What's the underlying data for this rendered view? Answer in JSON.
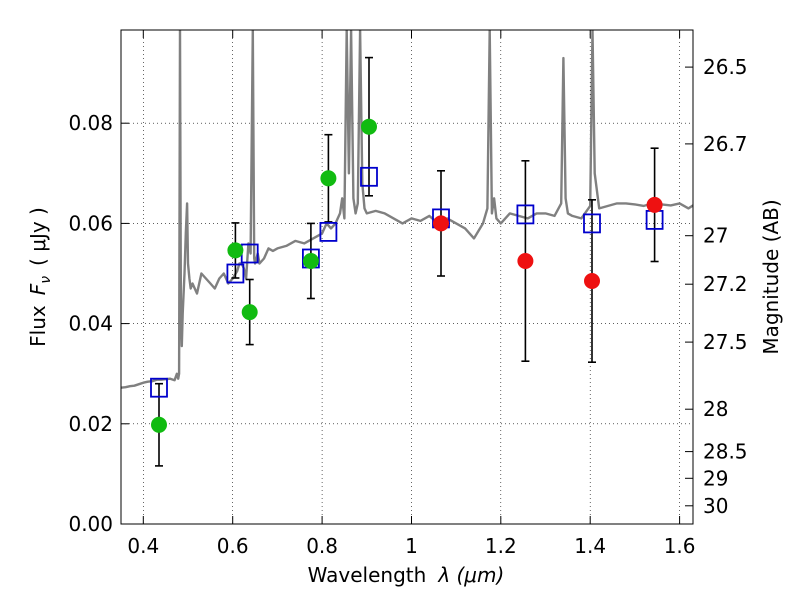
{
  "chart_data": {
    "type": "scatter",
    "xlabel": "Wavelength",
    "xlabel_symbol": "λ (μm)",
    "ylabel": "Flux",
    "ylabel_symbol": "F",
    "ylabel_subscript": "ν",
    "ylabel_unit": "( μJy )",
    "y2label": "Magnitude (AB)",
    "xlim": [
      0.35,
      1.63
    ],
    "ylim": [
      0.0,
      0.0986
    ],
    "grid": true,
    "x_ticks": [
      0.4,
      0.6,
      0.8,
      1.0,
      1.2,
      1.4,
      1.6
    ],
    "x_tick_labels": [
      "0.4",
      "0.6",
      "0.8",
      "1",
      "1.2",
      "1.4",
      "1.6"
    ],
    "y_ticks": [
      0.0,
      0.02,
      0.04,
      0.06,
      0.08
    ],
    "y_tick_labels": [
      "0.00",
      "0.02",
      "0.04",
      "0.06",
      "0.08"
    ],
    "magnitude_ticks": [
      {
        "label": "26.5",
        "mag": 26.5
      },
      {
        "label": "26.7",
        "mag": 26.7
      },
      {
        "label": "27",
        "mag": 27.0
      },
      {
        "label": "27.2",
        "mag": 27.2
      },
      {
        "label": "27.5",
        "mag": 27.5
      },
      {
        "label": "28",
        "mag": 28.0
      },
      {
        "label": "28.5",
        "mag": 28.5
      },
      {
        "label": "29",
        "mag": 29.0
      },
      {
        "label": "30",
        "mag": 30.0
      }
    ],
    "colors": {
      "model": "#808080",
      "optical": "#11bb11",
      "infrared": "#ee1111",
      "model_photometry": "#0000cc",
      "errorbar": "#000000"
    },
    "observed_optical": [
      {
        "x": 0.435,
        "y": 0.0198,
        "err_lo": 0.0082,
        "err_hi": 0.0082
      },
      {
        "x": 0.606,
        "y": 0.0546,
        "err_lo": 0.0055,
        "err_hi": 0.0055
      },
      {
        "x": 0.638,
        "y": 0.0423,
        "err_lo": 0.0065,
        "err_hi": 0.0065
      },
      {
        "x": 0.775,
        "y": 0.0525,
        "err_lo": 0.0075,
        "err_hi": 0.0075
      },
      {
        "x": 0.814,
        "y": 0.069,
        "err_lo": 0.0087,
        "err_hi": 0.0087
      },
      {
        "x": 0.905,
        "y": 0.0793,
        "err_lo": 0.0138,
        "err_hi": 0.0138
      }
    ],
    "observed_infrared": [
      {
        "x": 1.066,
        "y": 0.06,
        "err_lo": 0.0105,
        "err_hi": 0.0105
      },
      {
        "x": 1.255,
        "y": 0.0525,
        "err_lo": 0.02,
        "err_hi": 0.02
      },
      {
        "x": 1.404,
        "y": 0.0485,
        "err_lo": 0.0162,
        "err_hi": 0.0162
      },
      {
        "x": 1.544,
        "y": 0.0637,
        "err_lo": 0.0113,
        "err_hi": 0.0113
      }
    ],
    "model_photometry": [
      {
        "x": 0.435,
        "y": 0.0272
      },
      {
        "x": 0.606,
        "y": 0.05
      },
      {
        "x": 0.638,
        "y": 0.054
      },
      {
        "x": 0.775,
        "y": 0.053
      },
      {
        "x": 0.814,
        "y": 0.0583
      },
      {
        "x": 0.905,
        "y": 0.0693
      },
      {
        "x": 1.066,
        "y": 0.061
      },
      {
        "x": 1.255,
        "y": 0.0618
      },
      {
        "x": 1.404,
        "y": 0.06
      },
      {
        "x": 1.544,
        "y": 0.0607
      }
    ],
    "model_spectrum": {
      "x": [
        0.35,
        0.36,
        0.37,
        0.38,
        0.39,
        0.4,
        0.41,
        0.42,
        0.43,
        0.44,
        0.45,
        0.46,
        0.47,
        0.475,
        0.478,
        0.48,
        0.482,
        0.484,
        0.486,
        0.488,
        0.492,
        0.495,
        0.498,
        0.5,
        0.503,
        0.506,
        0.51,
        0.52,
        0.53,
        0.54,
        0.55,
        0.56,
        0.57,
        0.58,
        0.59,
        0.6,
        0.61,
        0.615,
        0.62,
        0.625,
        0.63,
        0.635,
        0.64,
        0.645,
        0.648,
        0.65,
        0.653,
        0.656,
        0.66,
        0.67,
        0.68,
        0.69,
        0.7,
        0.72,
        0.74,
        0.76,
        0.78,
        0.8,
        0.81,
        0.82,
        0.83,
        0.84,
        0.845,
        0.85,
        0.855,
        0.86,
        0.865,
        0.87,
        0.875,
        0.88,
        0.885,
        0.89,
        0.895,
        0.9,
        0.92,
        0.94,
        0.96,
        0.98,
        1.0,
        1.02,
        1.04,
        1.06,
        1.08,
        1.1,
        1.12,
        1.14,
        1.16,
        1.17,
        1.175,
        1.18,
        1.185,
        1.19,
        1.2,
        1.22,
        1.24,
        1.26,
        1.28,
        1.3,
        1.32,
        1.335,
        1.34,
        1.345,
        1.35,
        1.36,
        1.38,
        1.4,
        1.405,
        1.41,
        1.42,
        1.44,
        1.46,
        1.48,
        1.5,
        1.52,
        1.54,
        1.56,
        1.58,
        1.6,
        1.62,
        1.63
      ],
      "y": [
        0.0272,
        0.0273,
        0.0275,
        0.0276,
        0.0279,
        0.0282,
        0.0284,
        0.0285,
        0.0288,
        0.0288,
        0.0289,
        0.029,
        0.0287,
        0.03,
        0.029,
        0.03,
        0.0986,
        0.042,
        0.0355,
        0.042,
        0.05,
        0.058,
        0.064,
        0.052,
        0.049,
        0.047,
        0.048,
        0.046,
        0.05,
        0.049,
        0.048,
        0.047,
        0.049,
        0.05,
        0.048,
        0.049,
        0.0505,
        0.052,
        0.052,
        0.051,
        0.049,
        0.056,
        0.054,
        0.0986,
        0.053,
        0.052,
        0.053,
        0.054,
        0.052,
        0.053,
        0.055,
        0.0545,
        0.055,
        0.0555,
        0.0565,
        0.056,
        0.057,
        0.058,
        0.06,
        0.059,
        0.06,
        0.062,
        0.065,
        0.061,
        0.0986,
        0.07,
        0.0986,
        0.065,
        0.062,
        0.064,
        0.0986,
        0.068,
        0.063,
        0.062,
        0.0625,
        0.062,
        0.061,
        0.06,
        0.061,
        0.0605,
        0.0615,
        0.06,
        0.061,
        0.06,
        0.059,
        0.057,
        0.06,
        0.063,
        0.0986,
        0.062,
        0.065,
        0.061,
        0.06,
        0.062,
        0.0615,
        0.061,
        0.062,
        0.062,
        0.0615,
        0.064,
        0.093,
        0.065,
        0.062,
        0.0615,
        0.061,
        0.0635,
        0.0986,
        0.07,
        0.063,
        0.0635,
        0.064,
        0.064,
        0.0638,
        0.0635,
        0.064,
        0.0638,
        0.0636,
        0.064,
        0.063,
        0.0636
      ]
    }
  }
}
